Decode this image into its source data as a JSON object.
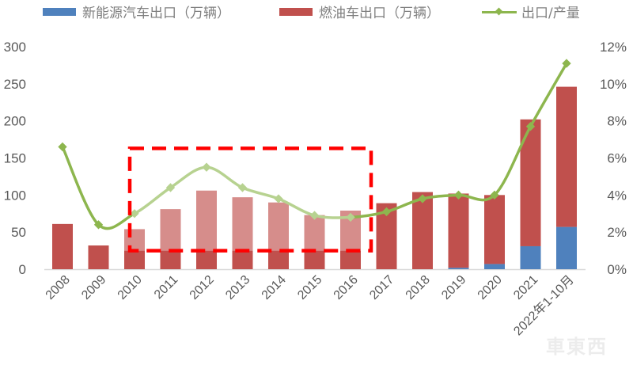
{
  "legend": {
    "nev_label": "新能源汽车出口（万辆）",
    "ice_label": "燃油车出口（万辆）",
    "ratio_label": "出口/产量"
  },
  "colors": {
    "nev": "#4f81bd",
    "ice": "#c0504d",
    "ice_highlight": "#d68d8b",
    "ratio_line": "#8db64e",
    "ratio_line_highlight": "#b7d290",
    "highlight_box": "#ff0000",
    "axis": "#d9d9d9",
    "tick_text": "#595959"
  },
  "watermark": "車東西",
  "chart_data": {
    "type": "bar",
    "stacked": true,
    "title": "",
    "xlabel": "",
    "ylabel": "",
    "y2label": "",
    "categories": [
      "2008",
      "2009",
      "2010",
      "2011",
      "2012",
      "2013",
      "2014",
      "2015",
      "2016",
      "2017",
      "2018",
      "2019",
      "2020",
      "2021",
      "2022年1-10月"
    ],
    "series": [
      {
        "name": "新能源汽车出口（万辆）",
        "type": "bar",
        "axis": "left",
        "values": [
          0,
          0,
          0,
          0,
          0,
          0,
          0,
          0,
          0,
          0,
          0,
          2,
          7,
          31,
          57
        ]
      },
      {
        "name": "燃油车出口（万辆）",
        "type": "bar",
        "axis": "left",
        "values": [
          61,
          32,
          54,
          81,
          106,
          97,
          90,
          73,
          79,
          89,
          104,
          100,
          93,
          171,
          189
        ]
      },
      {
        "name": "出口/产量",
        "type": "line",
        "axis": "right",
        "unit": "%",
        "values": [
          6.6,
          2.4,
          3.0,
          4.4,
          5.5,
          4.4,
          3.8,
          2.9,
          2.8,
          3.1,
          3.8,
          4.0,
          4.0,
          7.7,
          11.1
        ]
      }
    ],
    "ylim": [
      0,
      300
    ],
    "yticks": [
      "0",
      "50",
      "100",
      "150",
      "200",
      "250",
      "300"
    ],
    "y2lim": [
      0,
      12
    ],
    "y2ticks": [
      "0%",
      "2%",
      "4%",
      "6%",
      "8%",
      "10%",
      "12%"
    ],
    "grid": false,
    "legend_position": "top",
    "annotations": [
      {
        "type": "dashed-rectangle",
        "color": "#ff0000",
        "x_from": "2010",
        "x_to": "2016",
        "y_from": 25,
        "y_to": 163,
        "note": "bars and line inside box rendered semi-transparent (highlighted period)"
      }
    ],
    "highlight_range": [
      "2010",
      "2016"
    ]
  }
}
